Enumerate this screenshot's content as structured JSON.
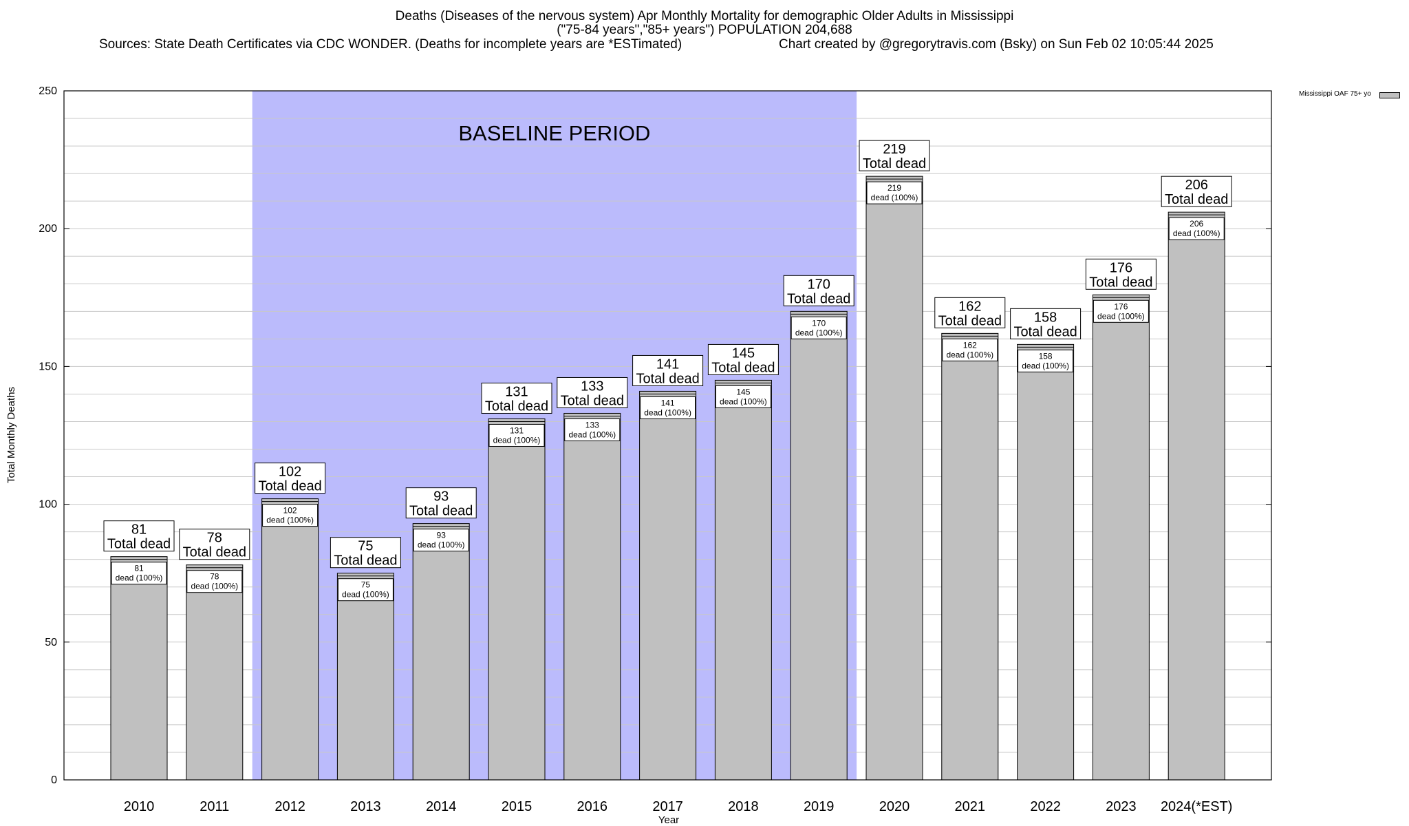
{
  "chart_data": {
    "type": "bar",
    "title_lines": [
      "Deaths (Diseases of the nervous system) Apr Monthly Mortality for demographic Older Adults in Mississippi",
      "(\"75-84 years\",\"85+ years\") POPULATION 204,688"
    ],
    "sources": "Sources: State Death Certificates via CDC WONDER. (Deaths for incomplete years are *ESTimated)",
    "credit": "Chart created by @gregorytravis.com (Bsky) on Sun Feb 02 10:05:44 2025",
    "xlabel": "Year",
    "ylabel": "Total Monthly Deaths",
    "ylim": [
      0,
      250
    ],
    "yticks": [
      0,
      50,
      100,
      150,
      200,
      250
    ],
    "categories": [
      "2010",
      "2011",
      "2012",
      "2013",
      "2014",
      "2015",
      "2016",
      "2017",
      "2018",
      "2019",
      "2020",
      "2021",
      "2022",
      "2023",
      "2024(*EST)"
    ],
    "series": [
      {
        "name": "Mississippi OAF 75+ yo",
        "values": [
          81,
          78,
          102,
          75,
          93,
          131,
          133,
          141,
          145,
          170,
          219,
          162,
          158,
          176,
          206
        ]
      }
    ],
    "total_label": "Total dead",
    "inner_label": "dead (100%)",
    "baseline": {
      "label": "BASELINE PERIOD",
      "start": "2012",
      "end": "2019"
    },
    "legend_position": "top-right",
    "grid": true,
    "colors": {
      "bar": "#c0c0c0",
      "baseline": "#bbbbfc",
      "grid": "#c8c8c8"
    }
  }
}
